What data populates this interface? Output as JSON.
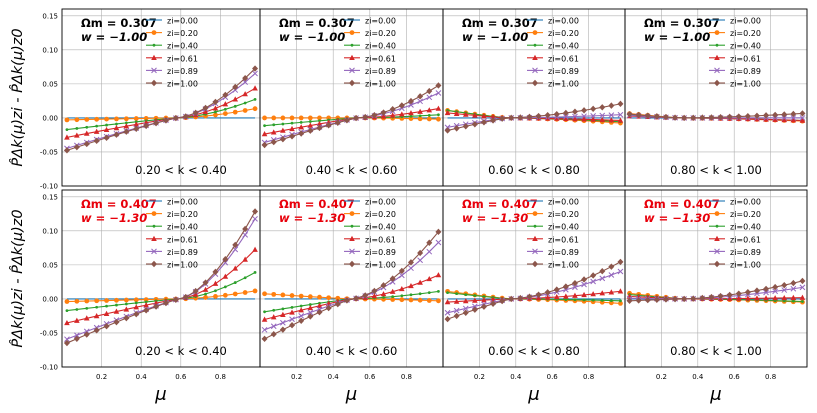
{
  "chart_data": {
    "type": "line",
    "layout": "2 rows x 4 columns, shared axes",
    "xlabel": "μ",
    "ylabel_top": "P̂Δk(μ)zi - P̂Δk(μ)z0",
    "ylabel_bottom": "P̂Δk(μ)zi - P̂Δk(μ)z0",
    "ylim": [
      -0.1,
      0.16
    ],
    "xlim": [
      0.0,
      1.0
    ],
    "yticks": [
      "0.15",
      "0.10",
      "0.05",
      "0.00",
      "-0.05",
      "-0.10"
    ],
    "ytick_values": [
      0.15,
      0.1,
      0.05,
      0.0,
      -0.05,
      -0.1
    ],
    "xticks": [
      "0.2",
      "0.4",
      "0.6",
      "0.8"
    ],
    "xtick_values": [
      0.2,
      0.4,
      0.6,
      0.8
    ],
    "grid": true,
    "legend": [
      "zi=0.00",
      "zi=0.20",
      "zi=0.40",
      "zi=0.61",
      "zi=0.89",
      "zi=1.00"
    ],
    "series_colors": [
      "#1f77b4",
      "#ff7f0e",
      "#2ca02c",
      "#d62728",
      "#9467bd",
      "#8c564b"
    ],
    "series_markers": [
      "none",
      "circle",
      "dot",
      "triangle",
      "x",
      "diamond"
    ],
    "k_labels": [
      "0.20 < k < 0.40",
      "0.40 < k < 0.60",
      "0.60 < k < 0.80",
      "0.80 < k < 1.00"
    ],
    "cosmo_top": {
      "omega": "Ωm = 0.307",
      "w": "w = −1.00",
      "color": "#000000"
    },
    "cosmo_bottom": {
      "omega": "Ωm = 0.407",
      "w": "w = −1.30",
      "color": "#e8000b"
    },
    "mu": [
      0.025,
      0.075,
      0.125,
      0.175,
      0.225,
      0.275,
      0.325,
      0.375,
      0.425,
      0.475,
      0.525,
      0.575,
      0.625,
      0.675,
      0.725,
      0.775,
      0.825,
      0.875,
      0.925,
      0.975
    ],
    "top": [
      {
        "k": "0.20 < k < 0.40",
        "end_values": [
          0.0,
          -0.003,
          -0.018,
          -0.03,
          -0.047,
          -0.05
        ],
        "peak_values": [
          0.0,
          0.015,
          0.03,
          0.048,
          0.072,
          0.08
        ],
        "root": 0.58
      },
      {
        "k": "0.40 < k < 0.60",
        "end_values": [
          0.0,
          0.0,
          -0.012,
          -0.025,
          -0.038,
          -0.042
        ],
        "peak_values": [
          0.0,
          -0.002,
          0.005,
          0.015,
          0.04,
          0.052
        ],
        "root": 0.53
      },
      {
        "k": "0.60 < k < 0.80",
        "end_values": [
          0.0,
          0.012,
          0.012,
          0.008,
          -0.015,
          -0.02
        ],
        "peak_values": [
          0.0,
          -0.008,
          -0.006,
          -0.004,
          0.005,
          0.022
        ],
        "root": 0.35
      },
      {
        "k": "0.80 < k < 1.00",
        "end_values": [
          0.0,
          0.007,
          0.005,
          0.003,
          0.004,
          0.006
        ],
        "peak_values": [
          0.0,
          -0.005,
          -0.004,
          -0.004,
          0.0,
          0.007
        ],
        "root": 0.3
      }
    ],
    "bottom": [
      {
        "k": "0.20 < k < 0.40",
        "end_values": [
          0.0,
          -0.004,
          -0.018,
          -0.037,
          -0.062,
          -0.068
        ],
        "peak_values": [
          0.0,
          0.013,
          0.043,
          0.08,
          0.13,
          0.142
        ],
        "root": 0.59
      },
      {
        "k": "0.40 < k < 0.60",
        "end_values": [
          0.0,
          0.008,
          -0.02,
          -0.032,
          -0.048,
          -0.062
        ],
        "peak_values": [
          0.0,
          -0.003,
          0.012,
          0.038,
          0.09,
          0.107
        ],
        "root": 0.5
      },
      {
        "k": "0.60 < k < 0.80",
        "end_values": [
          0.0,
          0.012,
          0.01,
          -0.005,
          -0.022,
          -0.032
        ],
        "peak_values": [
          0.0,
          -0.007,
          -0.003,
          0.012,
          0.043,
          0.058
        ],
        "root": 0.37
      },
      {
        "k": "0.80 < k < 1.00",
        "end_values": [
          0.0,
          0.009,
          0.007,
          0.004,
          0.001,
          -0.003
        ],
        "peak_values": [
          0.0,
          -0.005,
          -0.004,
          0.002,
          0.018,
          0.028
        ],
        "root": 0.32
      }
    ]
  }
}
